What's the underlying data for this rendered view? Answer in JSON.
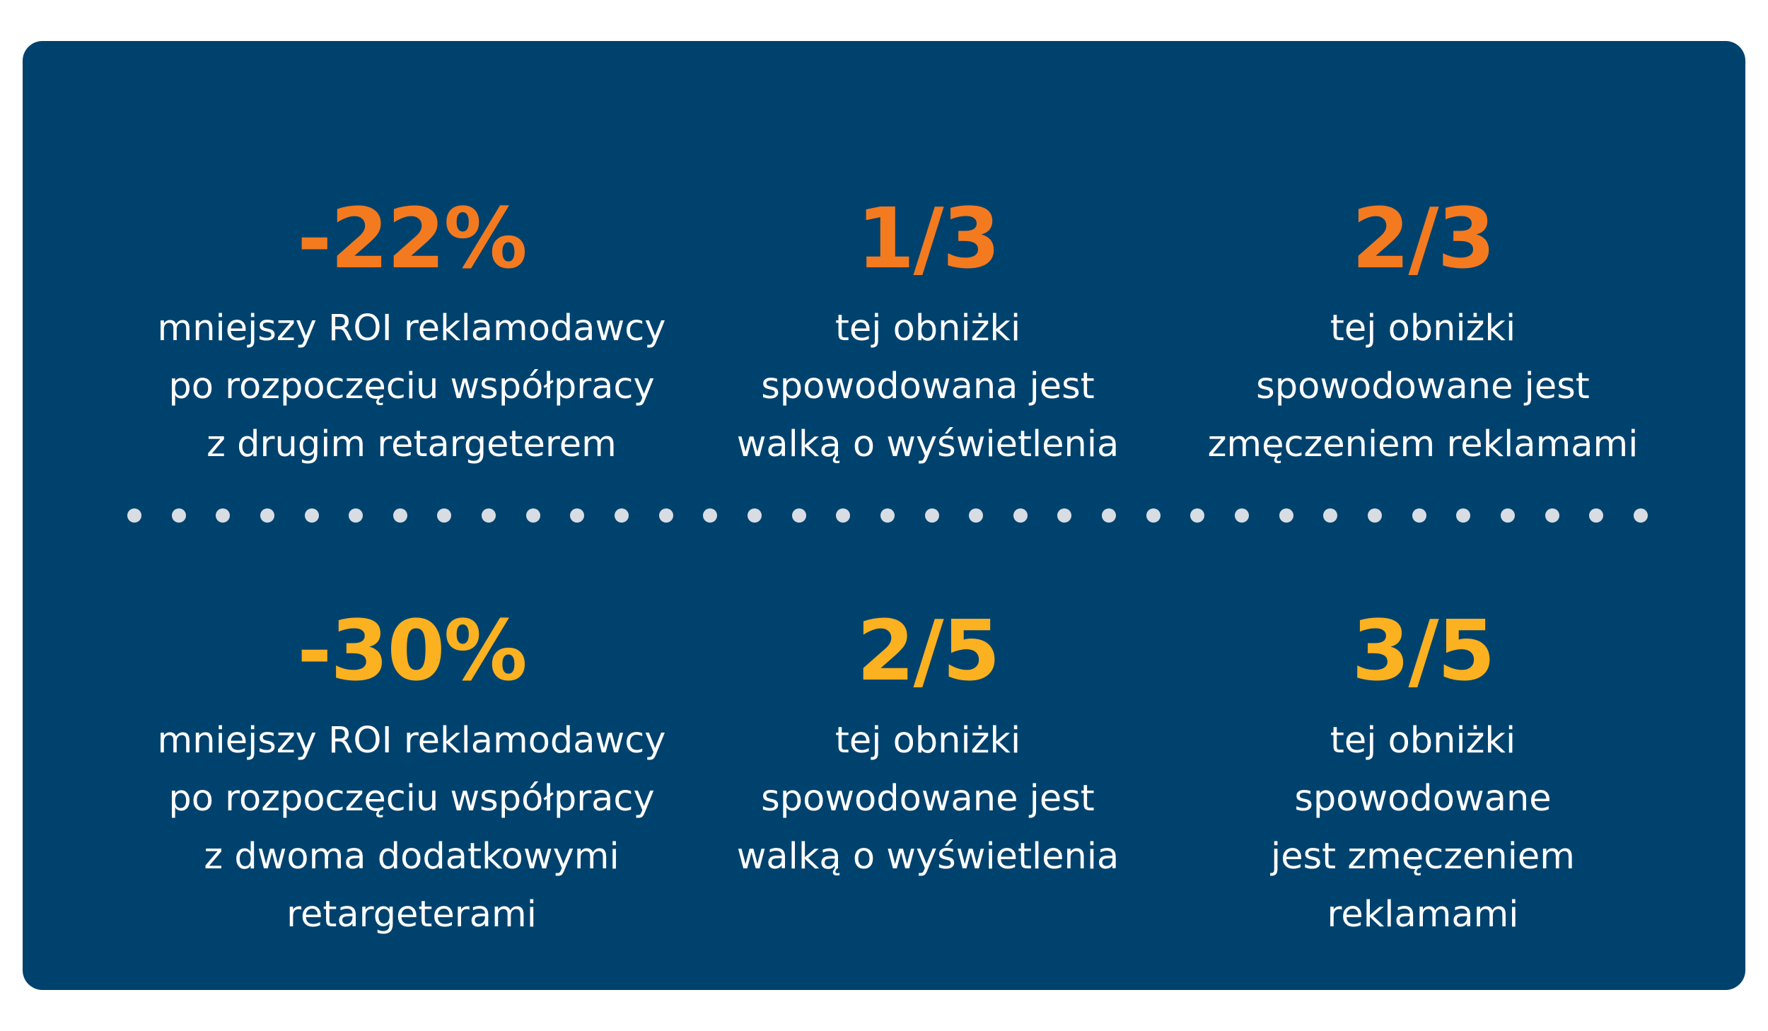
{
  "colors": {
    "panel_background": "#00426e",
    "accent_orange": "#f47a20",
    "accent_yellow": "#fbb120",
    "text": "#ffffff",
    "divider_dots": "#d8dde3"
  },
  "divider": {
    "dot_count": 35
  },
  "row1": [
    {
      "value": "-22%",
      "lines": [
        "mniejszy ROI reklamodawcy",
        "po rozpoczęciu współpracy",
        "z drugim retargeterem"
      ]
    },
    {
      "value": "1/3",
      "lines": [
        "tej obniżki",
        "spowodowana jest",
        "walką o wyświetlenia"
      ]
    },
    {
      "value": "2/3",
      "lines": [
        "tej obniżki",
        "spowodowane jest",
        "zmęczeniem reklamami"
      ]
    }
  ],
  "row2": [
    {
      "value": "-30%",
      "lines": [
        "mniejszy ROI reklamodawcy",
        "po rozpoczęciu współpracy",
        "z dwoma dodatkowymi",
        "retargeterami"
      ]
    },
    {
      "value": "2/5",
      "lines": [
        "tej obniżki",
        "spowodowane jest",
        "walką o wyświetlenia"
      ]
    },
    {
      "value": "3/5",
      "lines": [
        "tej obniżki",
        "spowodowane",
        "jest zmęczeniem",
        "reklamami"
      ]
    }
  ]
}
